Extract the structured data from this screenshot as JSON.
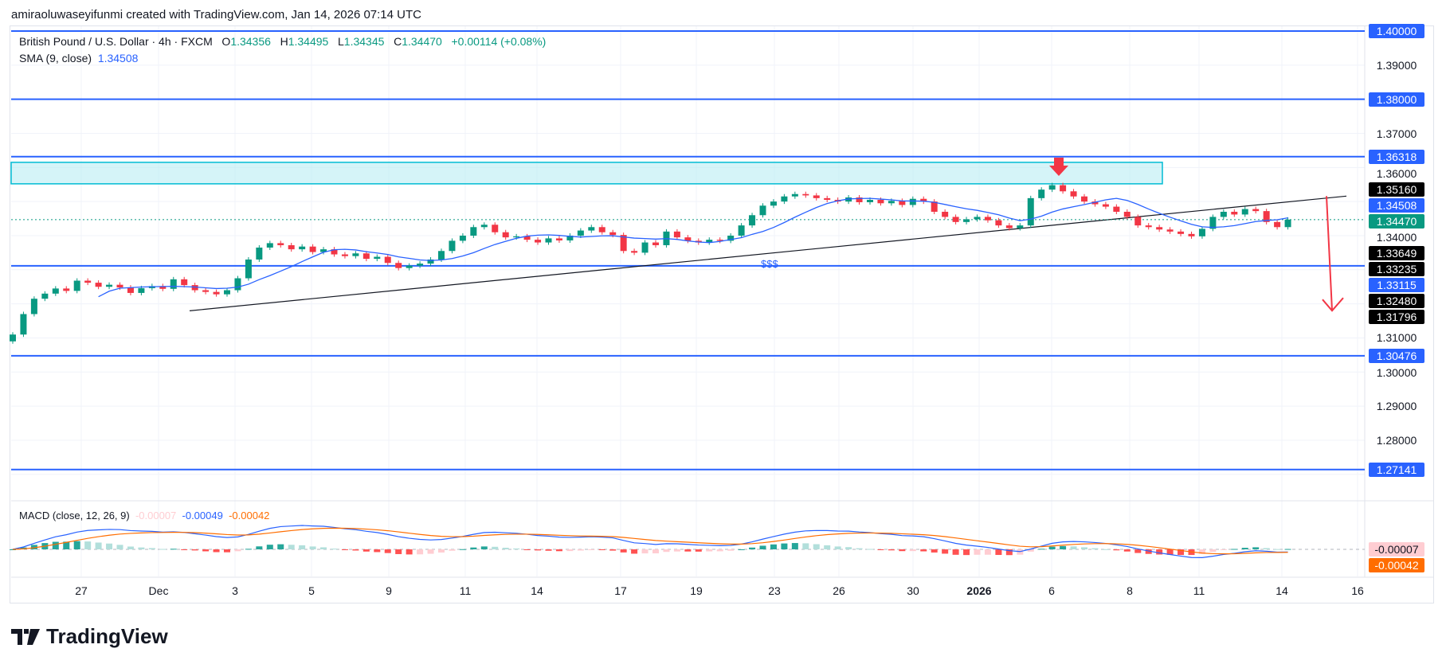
{
  "header": {
    "attribution": "amiraoluwaseyifunmi created with TradingView.com, Jan 14, 2026 07:14 UTC"
  },
  "legend": {
    "symbol": "British Pound / U.S. Dollar · 4h · FXCM",
    "o_label": "O",
    "open": "1.34356",
    "h_label": "H",
    "high": "1.34495",
    "l_label": "L",
    "low": "1.34345",
    "c_label": "C",
    "close": "1.34470",
    "change": "+0.00114 (+0.08%)"
  },
  "sma": {
    "label": "SMA (9, close)",
    "value": "1.34508"
  },
  "macd": {
    "label": "MACD (close, 12, 26, 9)",
    "hist": "-0.00007",
    "macd": "-0.00049",
    "signal": "-0.00042"
  },
  "annotation": {
    "liquidity_text": "$$$"
  },
  "logo": {
    "text": "TradingView"
  },
  "colors": {
    "up": "#089981",
    "down": "#f23645",
    "sma": "#2962ff",
    "level": "#2962ff",
    "zone": "#b2ebf2",
    "arrow": "#f23645",
    "macd": "#2962ff",
    "signal": "#ff6d00"
  },
  "chart_data": {
    "type": "candlestick",
    "symbol": "GBPUSD",
    "timeframe": "4h",
    "ylim": [
      1.262,
      1.402
    ],
    "y_ticks": [
      "1.39000",
      "1.37000",
      "1.36000",
      "1.34000",
      "1.31000",
      "1.30000",
      "1.29000",
      "1.28000"
    ],
    "x_ticks": [
      "27",
      "Dec",
      "3",
      "5",
      "9",
      "11",
      "14",
      "17",
      "19",
      "23",
      "26",
      "30",
      "2026",
      "6",
      "8",
      "11",
      "14",
      "16"
    ],
    "close": [
      1.311,
      1.317,
      1.3215,
      1.323,
      1.3245,
      1.3238,
      1.3268,
      1.3262,
      1.325,
      1.3256,
      1.3248,
      1.3232,
      1.3246,
      1.3252,
      1.3244,
      1.3272,
      1.3255,
      1.324,
      1.3235,
      1.3228,
      1.324,
      1.3275,
      1.333,
      1.3365,
      1.3378,
      1.3372,
      1.336,
      1.3368,
      1.3352,
      1.336,
      1.3345,
      1.334,
      1.3348,
      1.3332,
      1.3338,
      1.332,
      1.3305,
      1.3312,
      1.3318,
      1.333,
      1.3355,
      1.3385,
      1.34,
      1.3425,
      1.3432,
      1.341,
      1.3395,
      1.3398,
      1.3388,
      1.338,
      1.3392,
      1.3386,
      1.34,
      1.3415,
      1.3425,
      1.341,
      1.3402,
      1.3355,
      1.335,
      1.338,
      1.3372,
      1.3412,
      1.3395,
      1.3385,
      1.338,
      1.3388,
      1.3385,
      1.34,
      1.343,
      1.346,
      1.3488,
      1.35,
      1.3515,
      1.3522,
      1.3518,
      1.351,
      1.3505,
      1.35,
      1.3512,
      1.3498,
      1.3505,
      1.3495,
      1.3502,
      1.349,
      1.3508,
      1.35,
      1.347,
      1.3455,
      1.344,
      1.3448,
      1.3455,
      1.3445,
      1.343,
      1.3422,
      1.343,
      1.351,
      1.3535,
      1.3548,
      1.353,
      1.3515,
      1.35,
      1.3492,
      1.3485,
      1.347,
      1.3455,
      1.343,
      1.3425,
      1.3418,
      1.3412,
      1.3405,
      1.3398,
      1.342,
      1.3455,
      1.347,
      1.3462,
      1.3478,
      1.3472,
      1.344,
      1.3425,
      1.3447
    ],
    "levels": [
      {
        "price": 1.4,
        "label": "1.40000"
      },
      {
        "price": 1.38,
        "label": "1.38000"
      },
      {
        "price": 1.36318,
        "label": "1.36318"
      },
      {
        "price": 1.33115,
        "label": "1.33115"
      },
      {
        "price": 1.30476,
        "label": "1.30476"
      },
      {
        "price": 1.27141,
        "label": "1.27141"
      }
    ],
    "zone": {
      "top": 1.3615,
      "bottom": 1.3552
    },
    "trendline": {
      "start": 1.31796,
      "end": 1.3516
    },
    "price_tags": [
      {
        "label": "1.35160",
        "price": 1.3516,
        "color": "#000000"
      },
      {
        "label": "1.34508",
        "price": 1.34508,
        "color": "#2962ff"
      },
      {
        "label": "1.34470",
        "price": 1.3447,
        "color": "#089981"
      },
      {
        "label": "1.33649",
        "price": 1.33649,
        "color": "#000000"
      },
      {
        "label": "1.33235",
        "price": 1.33235,
        "color": "#000000"
      },
      {
        "label": "1.32480",
        "price": 1.3248,
        "color": "#000000"
      },
      {
        "label": "1.31796",
        "price": 1.31796,
        "color": "#000000"
      }
    ],
    "current_price": 1.3447,
    "projection": {
      "from": 1.3516,
      "to": 1.318
    },
    "macd_tags": [
      {
        "label": "-0.00007",
        "color": "#ffcdd2",
        "text": "#131722"
      },
      {
        "label": "-0.00042",
        "color": "#ff6d00",
        "text": "#ffffff"
      }
    ]
  }
}
